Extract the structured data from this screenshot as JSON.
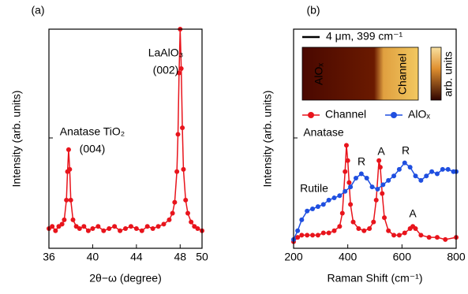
{
  "chart_data": [
    {
      "type": "line",
      "panel_label": "(a)",
      "x_label": "2θ−ω (degree)",
      "y_label": "Intensity (arb. units)",
      "xlim": [
        36,
        50
      ],
      "xticks": [
        36,
        40,
        44,
        48,
        50
      ],
      "ylim": [
        0,
        100
      ],
      "annotations": [
        {
          "text": "LaAlO₃",
          "color": "#000000"
        },
        {
          "text": "(002)",
          "color": "#000000"
        },
        {
          "text": "Anatase TiO₂",
          "color": "#000000"
        },
        {
          "text": "(004)",
          "color": "#000000"
        }
      ],
      "series": [
        {
          "name": null,
          "color": "#e8141c",
          "x": [
            36.0,
            36.3,
            36.6,
            36.9,
            37.2,
            37.4,
            37.6,
            37.7,
            37.8,
            37.9,
            38.0,
            38.2,
            38.5,
            38.8,
            39.2,
            39.6,
            40.0,
            40.5,
            41.0,
            41.5,
            42.0,
            42.5,
            43.0,
            43.5,
            44.0,
            44.5,
            45.0,
            45.5,
            46.0,
            46.5,
            47.0,
            47.3,
            47.5,
            47.7,
            47.8,
            47.9,
            48.0,
            48.1,
            48.2,
            48.3,
            48.5,
            48.7,
            49.0,
            49.3,
            49.6,
            50.0
          ],
          "values": [
            9,
            10,
            8,
            10,
            11,
            13,
            22,
            35,
            45,
            36,
            22,
            13,
            10,
            9,
            10,
            8,
            9,
            10,
            8,
            9,
            10,
            8,
            9,
            10,
            9,
            8,
            10,
            9,
            10,
            11,
            13,
            16,
            21,
            35,
            52,
            80,
            100,
            82,
            55,
            36,
            22,
            16,
            12,
            10,
            9,
            8
          ]
        }
      ]
    },
    {
      "type": "line",
      "panel_label": "(b)",
      "x_label": "Raman Shift (cm⁻¹)",
      "y_label": "Intensity (arb. units)",
      "xlim": [
        200,
        800
      ],
      "xticks": [
        200,
        400,
        600,
        800
      ],
      "ylim": [
        0,
        100
      ],
      "inset": {
        "scale_bar": "4 μm, 399 cm⁻¹",
        "region_left": "AlOₓ",
        "region_right": "Channel",
        "colorbar_label": "arb. units"
      },
      "annotations": [
        {
          "text": "Anatase",
          "color": "#e8141c"
        },
        {
          "text": "Rutile",
          "color": "#1f4fe0"
        },
        {
          "text": "R",
          "color": "#1f4fe0"
        },
        {
          "text": "R",
          "color": "#1f4fe0"
        },
        {
          "text": "A",
          "color": "#e8141c"
        },
        {
          "text": "A",
          "color": "#e8141c"
        }
      ],
      "series": [
        {
          "name": "Channel",
          "color": "#e8141c",
          "x": [
            200,
            215,
            230,
            250,
            270,
            290,
            310,
            330,
            350,
            370,
            380,
            390,
            395,
            400,
            405,
            410,
            420,
            440,
            460,
            480,
            495,
            505,
            515,
            520,
            527,
            535,
            550,
            570,
            590,
            610,
            630,
            640,
            650,
            670,
            700,
            730,
            760,
            800
          ],
          "values": [
            3,
            5,
            6,
            6,
            6,
            6,
            7,
            7,
            8,
            10,
            16,
            35,
            47,
            40,
            30,
            20,
            12,
            9,
            8,
            9,
            12,
            22,
            40,
            37,
            25,
            14,
            8,
            6,
            6,
            7,
            9,
            10,
            9,
            6,
            5,
            5,
            4,
            5
          ]
        },
        {
          "name": "AlOₓ",
          "color": "#1f4fe0",
          "x": [
            200,
            215,
            230,
            250,
            270,
            290,
            310,
            330,
            350,
            370,
            390,
            410,
            430,
            450,
            470,
            490,
            510,
            530,
            550,
            570,
            590,
            610,
            630,
            650,
            670,
            690,
            710,
            730,
            750,
            770,
            790,
            800
          ],
          "values": [
            4,
            8,
            13,
            17,
            18,
            19,
            20,
            22,
            23,
            24,
            26,
            28,
            32,
            34,
            32,
            28,
            27,
            29,
            31,
            33,
            36,
            39,
            37,
            33,
            31,
            33,
            35,
            34,
            36,
            36,
            35,
            35
          ]
        }
      ]
    }
  ]
}
